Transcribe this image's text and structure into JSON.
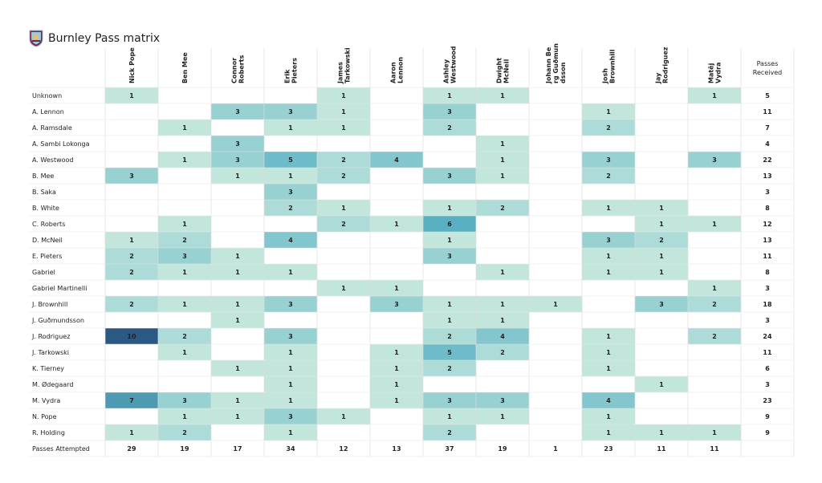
{
  "chart_data": {
    "type": "heatmap",
    "title": "Burnley Pass matrix",
    "columns": [
      "Nick Pope",
      "Ben Mee",
      "Connor Roberts",
      "Erik Pieters",
      "James Tarkowski",
      "Aaron Lennon",
      "Ashley Westwood",
      "Dwight McNeil",
      "Johann Berg Guðmundsson",
      "Josh Brownhill",
      "Jay Rodriguez",
      "Matěj Vydra"
    ],
    "column_label_lines": [
      [
        "Nick Pope"
      ],
      [
        "Ben Mee"
      ],
      [
        "Connor",
        "Roberts"
      ],
      [
        "Erik",
        "Pieters"
      ],
      [
        "James",
        "Tarkowski"
      ],
      [
        "Aaron",
        "Lennon"
      ],
      [
        "Ashley",
        "Westwood"
      ],
      [
        "Dwight",
        "McNeil"
      ],
      [
        "Johann Be",
        "rg Guðmun",
        "dsson"
      ],
      [
        "Josh",
        "Brownhill"
      ],
      [
        "Jay",
        "Rodriguez"
      ],
      [
        "Matěj",
        "Vydra"
      ]
    ],
    "rows": [
      "Unknown",
      "A. Lennon",
      "A. Ramsdale",
      "A. Sambi Lokonga",
      "A. Westwood",
      "B. Mee",
      "B. Saka",
      "B. White",
      "C. Roberts",
      "D. McNeil",
      "E. Pieters",
      "Gabriel",
      "Gabriel Martinelli",
      "J. Brownhill",
      "J. Guðmundsson",
      "J. Rodriguez",
      "J. Tarkowski",
      "K. Tierney",
      "M. Ødegaard",
      "M. Vydra",
      "N. Pope",
      "R. Holding"
    ],
    "values": [
      [
        1,
        null,
        null,
        null,
        1,
        null,
        1,
        1,
        null,
        null,
        null,
        1
      ],
      [
        null,
        null,
        3,
        3,
        1,
        null,
        3,
        null,
        null,
        1,
        null,
        null
      ],
      [
        null,
        1,
        null,
        1,
        1,
        null,
        2,
        null,
        null,
        2,
        null,
        null
      ],
      [
        null,
        null,
        3,
        null,
        null,
        null,
        null,
        1,
        null,
        null,
        null,
        null
      ],
      [
        null,
        1,
        3,
        5,
        2,
        4,
        null,
        1,
        null,
        3,
        null,
        3
      ],
      [
        3,
        null,
        1,
        1,
        2,
        null,
        3,
        1,
        null,
        2,
        null,
        null
      ],
      [
        null,
        null,
        null,
        3,
        null,
        null,
        null,
        null,
        null,
        null,
        null,
        null
      ],
      [
        null,
        null,
        null,
        2,
        1,
        null,
        1,
        2,
        null,
        1,
        1,
        null
      ],
      [
        null,
        1,
        null,
        null,
        2,
        1,
        6,
        null,
        null,
        null,
        1,
        1
      ],
      [
        1,
        2,
        null,
        4,
        null,
        null,
        1,
        null,
        null,
        3,
        2,
        null
      ],
      [
        2,
        3,
        1,
        null,
        null,
        null,
        3,
        null,
        null,
        1,
        1,
        null
      ],
      [
        2,
        1,
        1,
        1,
        null,
        null,
        null,
        1,
        null,
        1,
        1,
        null
      ],
      [
        null,
        null,
        null,
        null,
        1,
        1,
        null,
        null,
        null,
        null,
        null,
        1
      ],
      [
        2,
        1,
        1,
        3,
        null,
        3,
        1,
        1,
        1,
        null,
        3,
        2
      ],
      [
        null,
        null,
        1,
        null,
        null,
        null,
        1,
        1,
        null,
        null,
        null,
        null
      ],
      [
        10,
        2,
        null,
        3,
        null,
        null,
        2,
        4,
        null,
        1,
        null,
        2
      ],
      [
        null,
        1,
        null,
        1,
        null,
        1,
        5,
        2,
        null,
        1,
        null,
        null
      ],
      [
        null,
        null,
        1,
        1,
        null,
        1,
        2,
        null,
        null,
        1,
        null,
        null
      ],
      [
        null,
        null,
        null,
        1,
        null,
        1,
        null,
        null,
        null,
        null,
        1,
        null
      ],
      [
        7,
        3,
        1,
        1,
        null,
        1,
        3,
        3,
        null,
        4,
        null,
        null
      ],
      [
        null,
        1,
        1,
        3,
        1,
        null,
        1,
        1,
        null,
        1,
        null,
        null
      ],
      [
        1,
        2,
        null,
        1,
        null,
        null,
        2,
        null,
        null,
        1,
        1,
        1
      ]
    ],
    "passes_received_label": [
      "Passes",
      "Received"
    ],
    "passes_received": [
      5,
      11,
      7,
      4,
      22,
      13,
      3,
      8,
      12,
      13,
      11,
      8,
      3,
      18,
      3,
      24,
      11,
      6,
      3,
      23,
      9,
      9
    ],
    "passes_attempted_label": "Passes Attempted",
    "passes_attempted": [
      29,
      19,
      17,
      34,
      12,
      13,
      37,
      19,
      1,
      23,
      11,
      11
    ],
    "color_scale": {
      "low": "#c2e6dc",
      "mid": "#5ab1c4",
      "high": "#2c5984",
      "max_value": 10
    }
  }
}
